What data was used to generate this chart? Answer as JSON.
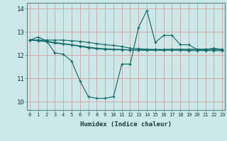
{
  "background_color": "#cce8e8",
  "grid_color": "#d4a0a0",
  "line_color": "#1a6b6b",
  "x_label": "Humidex (Indice chaleur)",
  "x_ticks": [
    0,
    1,
    2,
    3,
    4,
    5,
    6,
    7,
    8,
    9,
    10,
    11,
    12,
    13,
    14,
    15,
    16,
    17,
    18,
    19,
    20,
    21,
    22,
    23
  ],
  "y_ticks": [
    10,
    11,
    12,
    13,
    14
  ],
  "xlim": [
    -0.3,
    23.3
  ],
  "ylim": [
    9.65,
    14.25
  ],
  "series": [
    [
      12.65,
      12.78,
      12.62,
      12.1,
      12.05,
      11.75,
      10.9,
      10.22,
      10.15,
      10.15,
      10.22,
      11.62,
      11.62,
      13.2,
      13.92,
      12.55,
      12.85,
      12.85,
      12.45,
      12.45,
      12.25,
      12.25,
      12.3,
      12.25
    ],
    [
      12.65,
      12.65,
      12.65,
      12.65,
      12.65,
      12.62,
      12.6,
      12.55,
      12.5,
      12.45,
      12.42,
      12.38,
      12.3,
      12.28,
      12.26,
      12.25,
      12.23,
      12.22,
      12.21,
      12.2,
      12.2,
      12.2,
      12.2,
      12.2
    ],
    [
      12.65,
      12.65,
      12.6,
      12.55,
      12.5,
      12.45,
      12.4,
      12.35,
      12.3,
      12.28,
      12.26,
      12.25,
      12.23,
      12.22,
      12.21,
      12.21,
      12.21,
      12.22,
      12.22,
      12.22,
      12.22,
      12.22,
      12.22,
      12.22
    ],
    [
      12.65,
      12.62,
      12.58,
      12.52,
      12.48,
      12.44,
      12.38,
      12.32,
      12.28,
      12.25,
      12.24,
      12.23,
      12.23,
      12.23,
      12.23,
      12.24,
      12.25,
      12.26,
      12.26,
      12.26,
      12.26,
      12.26,
      12.26,
      12.26
    ]
  ]
}
